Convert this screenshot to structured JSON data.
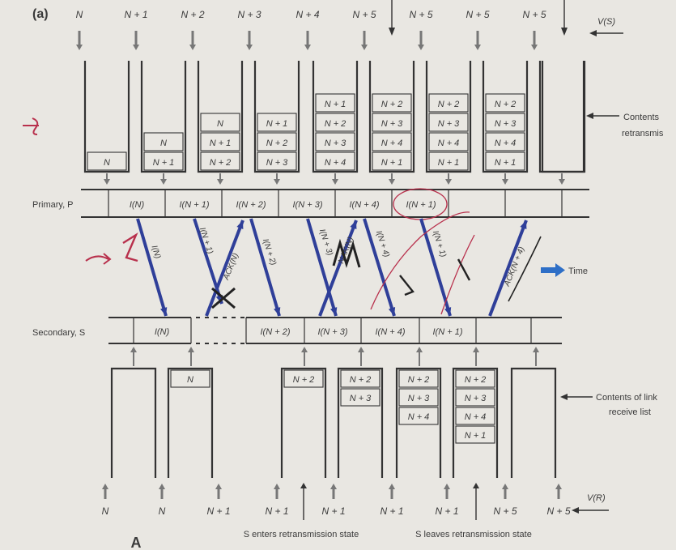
{
  "panel_label": "(a)",
  "vs_top": [
    "N",
    "N + 1",
    "N + 2",
    "N + 3",
    "N + 4",
    "N + 5",
    "N + 5",
    "N + 5",
    "N + 5"
  ],
  "vs_label": "V(S)",
  "primary_label": "Primary, P",
  "secondary_label": "Secondary, S",
  "time_label": "Time",
  "contents_primary": "Contents retransmis",
  "contents_secondary": "Contents of link receive list",
  "primary_buffers": [
    [],
    [
      "N"
    ],
    [
      "N + 1",
      "N"
    ],
    [
      "N + 2",
      "N + 1",
      "N"
    ],
    [
      "N + 3",
      "N + 2",
      "N + 1"
    ],
    [
      "N + 4",
      "N + 3",
      "N + 2",
      "N + 1"
    ],
    [
      "N + 1",
      "N + 4",
      "N + 3",
      "N + 2"
    ],
    [
      "N + 1",
      "N + 4",
      "N + 3",
      "N + 2"
    ],
    [
      "N + 1",
      "N + 4",
      "N + 3",
      "N + 2"
    ],
    []
  ],
  "primary_frames": [
    "I(N)",
    "I(N + 1)",
    "I(N + 2)",
    "I(N + 3)",
    "I(N + 4)",
    "I(N + 1)"
  ],
  "secondary_frames": [
    "I(N)",
    "I(N + 2)",
    "I(N + 3)",
    "I(N + 4)",
    "I(N + 1)"
  ],
  "arrow_labels": [
    "I(N)",
    "I(N + 1)",
    "ACK(N)",
    "I(N + 2)",
    "I(N + 3)",
    "NAK(N)",
    "I(N + 4)",
    "I(N + 1)",
    "ACK(N + 4)"
  ],
  "secondary_buffers": [
    [],
    [
      "N"
    ],
    [],
    [
      "N + 2"
    ],
    [
      "N + 2",
      "N + 3"
    ],
    [
      "N + 2",
      "N + 3",
      "N + 4"
    ],
    [
      "N + 2",
      "N + 3",
      "N + 4",
      "N + 1"
    ],
    []
  ],
  "vr_bottom": [
    "N",
    "N",
    "N + 1",
    "N + 1",
    "N + 1",
    "N + 1",
    "N + 1",
    "N + 5",
    "N + 5"
  ],
  "vr_label": "V(R)",
  "note_enter": "S enters retransmission state",
  "note_leave": "S leaves retransmission state",
  "colors": {
    "frame_arrow": "#2f3f99",
    "ink": "#333333",
    "annotation": "#b8304c",
    "time_arrow": "#2e6fc7"
  }
}
